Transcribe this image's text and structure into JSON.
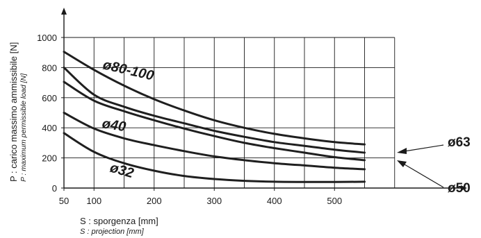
{
  "chart_data": {
    "type": "line",
    "x_ticks": [
      50,
      100,
      200,
      300,
      400,
      500
    ],
    "y_ticks": [
      0,
      200,
      400,
      600,
      800,
      1000
    ],
    "xlim": [
      50,
      650
    ],
    "ylim": [
      0,
      1000
    ],
    "grid": true,
    "xlabel": "S : sporgenza [mm]",
    "xlabel_en": "S : projection [mm]",
    "ylabel": "P : carico massimo ammissibile [N]",
    "ylabel_en": "P : maximum permissible load [N]",
    "series": [
      {
        "name": "ø80-100",
        "x": [
          50,
          100,
          150,
          200,
          250,
          300,
          350,
          400,
          450,
          500,
          550
        ],
        "y": [
          905,
          785,
          680,
          590,
          515,
          450,
          400,
          360,
          330,
          305,
          290
        ]
      },
      {
        "name": "ø63",
        "x": [
          50,
          100,
          150,
          200,
          250,
          300,
          350,
          400,
          450,
          500,
          550
        ],
        "y": [
          800,
          620,
          540,
          480,
          430,
          380,
          340,
          305,
          280,
          255,
          235
        ]
      },
      {
        "name": "ø50",
        "x": [
          50,
          100,
          150,
          200,
          250,
          300,
          350,
          400,
          450,
          500,
          550
        ],
        "y": [
          705,
          580,
          510,
          450,
          395,
          345,
          300,
          265,
          235,
          205,
          185
        ]
      },
      {
        "name": "ø40",
        "x": [
          50,
          100,
          150,
          200,
          250,
          300,
          350,
          400,
          450,
          500,
          550
        ],
        "y": [
          500,
          395,
          330,
          285,
          245,
          210,
          185,
          165,
          150,
          135,
          125
        ]
      },
      {
        "name": "ø32",
        "x": [
          50,
          100,
          150,
          200,
          250,
          300,
          350,
          400,
          450,
          500,
          550
        ],
        "y": [
          365,
          240,
          165,
          115,
          80,
          60,
          48,
          42,
          40,
          40,
          42
        ]
      }
    ]
  }
}
